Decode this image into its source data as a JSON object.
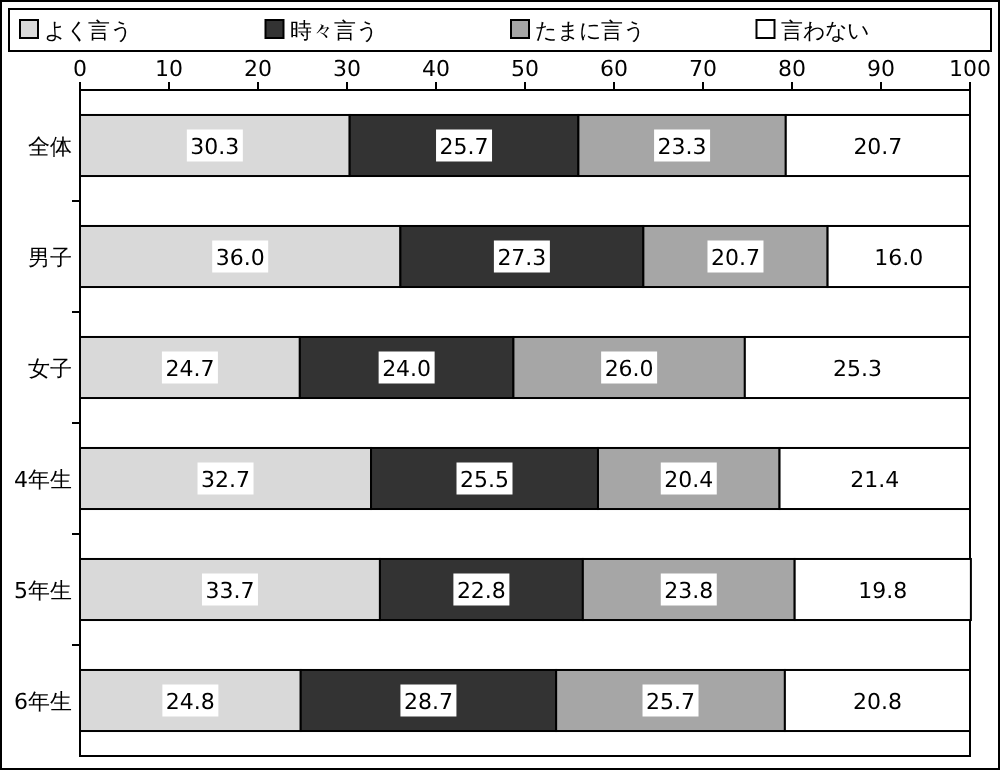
{
  "chart_data": {
    "type": "bar",
    "orientation": "horizontal",
    "stacked": true,
    "legend": "top",
    "grid": false,
    "categories": [
      "全体",
      "男子",
      "女子",
      "4年生",
      "5年生",
      "6年生"
    ],
    "xlim": [
      0,
      100
    ],
    "xticks": [
      0,
      10,
      20,
      30,
      40,
      50,
      60,
      70,
      80,
      90,
      100
    ],
    "series": [
      {
        "name": "よく言う",
        "color": "#d9d9d9",
        "values": [
          30.3,
          36.0,
          24.7,
          32.7,
          33.7,
          24.8
        ],
        "value_labels": [
          "30.3",
          "36.0",
          "24.7",
          "32.7",
          "33.7",
          "24.8"
        ]
      },
      {
        "name": "時々言う",
        "color": "#333333",
        "values": [
          25.7,
          27.3,
          24.0,
          25.5,
          22.8,
          28.7
        ],
        "value_labels": [
          "25.7",
          "27.3",
          "24.0",
          "25.5",
          "22.8",
          "28.7"
        ]
      },
      {
        "name": "たまに言う",
        "color": "#a6a6a6",
        "values": [
          23.3,
          20.7,
          26.0,
          20.4,
          23.8,
          25.7
        ],
        "value_labels": [
          "23.3",
          "20.7",
          "26.0",
          "20.4",
          "23.8",
          "25.7"
        ]
      },
      {
        "name": "言わない",
        "color": "#ffffff",
        "values": [
          20.7,
          16.0,
          25.3,
          21.4,
          19.8,
          20.8
        ],
        "value_labels": [
          "20.7",
          "16.0",
          "25.3",
          "21.4",
          "19.8",
          "20.8"
        ]
      }
    ]
  }
}
